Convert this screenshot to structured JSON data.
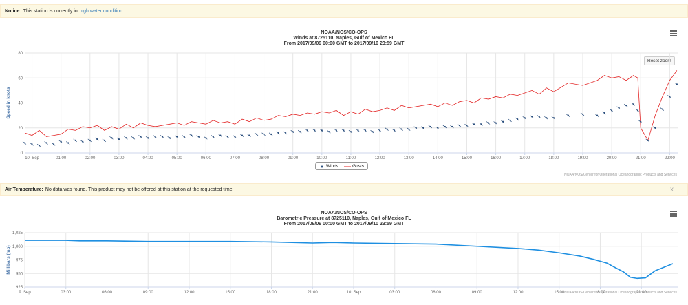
{
  "notice1": {
    "label": "Notice:",
    "text": "This station is currently in",
    "link": "high water condition",
    "end": "."
  },
  "winds_chart": {
    "line1": "NOAA/NOS/CO-OPS",
    "line2": "Winds at 8725110, Naples, Gulf of Mexico FL",
    "line3": "From 2017/09/09 00:00 GMT to 2017/09/10 23:59 GMT",
    "reset_zoom": "Reset zoom",
    "credits": "NOAA/NOS/Center for Operational Oceanographic Products and Services",
    "legend": {
      "winds": "Winds",
      "gusts": "Gusts"
    }
  },
  "notice2": {
    "label": "Air Temperature:",
    "text": "No data was found. This product may not be offered at this station at the requested time.",
    "close": "x"
  },
  "pressure_chart": {
    "line1": "NOAA/NOS/CO-OPS",
    "line2": "Barometric Pressure at 8725110, Naples, Gulf of Mexico FL",
    "line3": "From 2017/09/09 00:00 GMT to 2017/09/10 23:59 GMT",
    "credits": "NOAA/NOS/Center for Operational Oceanographic Products and Services"
  },
  "colors": {
    "gusts": "#e32424",
    "winds": "#2b4f7e",
    "pressure": "#1e8fe1"
  },
  "chart_data": [
    {
      "type": "line",
      "title": "Winds at 8725110, Naples, Gulf of Mexico FL",
      "ylabel": "Speed in knots",
      "ylim": [
        0,
        80
      ],
      "yticks": [
        0,
        20,
        40,
        60,
        80
      ],
      "xlim": [
        -0.25,
        22.3
      ],
      "xticks": [
        {
          "v": 0,
          "label": "10. Sep"
        },
        {
          "v": 1,
          "label": "01:00"
        },
        {
          "v": 2,
          "label": "02:00"
        },
        {
          "v": 3,
          "label": "03:00"
        },
        {
          "v": 4,
          "label": "04:00"
        },
        {
          "v": 5,
          "label": "05:00"
        },
        {
          "v": 6,
          "label": "06:00"
        },
        {
          "v": 7,
          "label": "07:00"
        },
        {
          "v": 8,
          "label": "08:00"
        },
        {
          "v": 9,
          "label": "09:00"
        },
        {
          "v": 10,
          "label": "10:00"
        },
        {
          "v": 11,
          "label": "11:00"
        },
        {
          "v": 12,
          "label": "12:00"
        },
        {
          "v": 13,
          "label": "13:00"
        },
        {
          "v": 14,
          "label": "14:00"
        },
        {
          "v": 15,
          "label": "15:00"
        },
        {
          "v": 16,
          "label": "16:00"
        },
        {
          "v": 17,
          "label": "17:00"
        },
        {
          "v": 18,
          "label": "18:00"
        },
        {
          "v": 19,
          "label": "19:00"
        },
        {
          "v": 20,
          "label": "20:00"
        },
        {
          "v": 21,
          "label": "21:00"
        },
        {
          "v": 22,
          "label": "22:00"
        }
      ],
      "series": [
        {
          "name": "Gusts",
          "x": [
            -0.25,
            0,
            0.25,
            0.5,
            0.75,
            1,
            1.25,
            1.5,
            1.75,
            2,
            2.25,
            2.5,
            2.75,
            3,
            3.25,
            3.5,
            3.75,
            4,
            4.25,
            4.5,
            4.75,
            5,
            5.25,
            5.5,
            5.75,
            6,
            6.25,
            6.5,
            6.75,
            7,
            7.25,
            7.5,
            7.75,
            8,
            8.25,
            8.5,
            8.75,
            9,
            9.25,
            9.5,
            9.75,
            10,
            10.25,
            10.5,
            10.75,
            11,
            11.25,
            11.5,
            11.75,
            12,
            12.25,
            12.5,
            12.75,
            13,
            13.25,
            13.5,
            13.75,
            14,
            14.25,
            14.5,
            14.75,
            15,
            15.25,
            15.5,
            15.75,
            16,
            16.25,
            16.5,
            16.75,
            17,
            17.25,
            17.5,
            17.75,
            18,
            18.5,
            19,
            19.5,
            19.75,
            20,
            20.25,
            20.5,
            20.75,
            20.9,
            21,
            21.25,
            21.5,
            21.75,
            22,
            22.25
          ],
          "values": [
            16,
            14,
            18,
            13,
            14,
            15,
            19,
            18,
            21,
            20,
            22,
            18,
            21,
            19,
            23,
            20,
            24,
            22,
            21,
            22,
            23,
            24,
            22,
            25,
            24,
            23,
            26,
            24,
            25,
            23,
            27,
            25,
            28,
            26,
            27,
            30,
            29,
            31,
            30,
            32,
            31,
            33,
            32,
            34,
            30,
            33,
            31,
            35,
            33,
            34,
            36,
            34,
            38,
            36,
            37,
            38,
            39,
            37,
            40,
            38,
            41,
            42,
            40,
            44,
            43,
            45,
            44,
            47,
            46,
            48,
            50,
            47,
            52,
            49,
            56,
            54,
            58,
            62,
            60,
            61,
            58,
            62,
            60,
            20,
            10,
            30,
            45,
            58,
            66
          ]
        },
        {
          "name": "Winds",
          "x": [
            -0.25,
            0,
            0.25,
            0.5,
            0.75,
            1,
            1.25,
            1.5,
            1.75,
            2,
            2.25,
            2.5,
            2.75,
            3,
            3.25,
            3.5,
            3.75,
            4,
            4.25,
            4.5,
            4.75,
            5,
            5.25,
            5.5,
            5.75,
            6,
            6.25,
            6.5,
            6.75,
            7,
            7.25,
            7.5,
            7.75,
            8,
            8.25,
            8.5,
            8.75,
            9,
            9.25,
            9.5,
            9.75,
            10,
            10.25,
            10.5,
            10.75,
            11,
            11.25,
            11.5,
            11.75,
            12,
            12.25,
            12.5,
            12.75,
            13,
            13.25,
            13.5,
            13.75,
            14,
            14.25,
            14.5,
            14.75,
            15,
            15.25,
            15.5,
            15.75,
            16,
            16.25,
            16.5,
            16.75,
            17,
            17.25,
            17.5,
            17.75,
            18,
            18.5,
            19,
            19.5,
            19.75,
            20,
            20.25,
            20.5,
            20.75,
            20.9,
            21,
            21.25,
            21.5,
            21.75,
            22,
            22.25
          ],
          "values": [
            8,
            7,
            6,
            8,
            7,
            9,
            8,
            10,
            9,
            10,
            11,
            10,
            12,
            11,
            12,
            12,
            13,
            12,
            13,
            13,
            12,
            13,
            13,
            14,
            13,
            12,
            13,
            14,
            13,
            13,
            14,
            14,
            15,
            15,
            15,
            16,
            16,
            17,
            17,
            18,
            18,
            18,
            17,
            18,
            18,
            17,
            18,
            18,
            17,
            18,
            19,
            18,
            19,
            19,
            20,
            20,
            21,
            20,
            21,
            21,
            22,
            22,
            23,
            23,
            24,
            24,
            25,
            26,
            27,
            28,
            29,
            29,
            28,
            28,
            30,
            31,
            30,
            32,
            34,
            36,
            38,
            39,
            34,
            25,
            10,
            20,
            35,
            45,
            55
          ]
        }
      ]
    },
    {
      "type": "line",
      "title": "Barometric Pressure at 8725110, Naples, Gulf of Mexico FL",
      "ylabel": "Millibars (mb)",
      "ylim": [
        925,
        1025
      ],
      "yticks": [
        925,
        950,
        975,
        1000,
        1025
      ],
      "ytick_labels": [
        "925",
        "950",
        "975",
        "1,000",
        "1,025"
      ],
      "xlim": [
        0,
        47.7
      ],
      "xticks": [
        {
          "v": 0,
          "label": "9. Sep"
        },
        {
          "v": 3,
          "label": "03:00"
        },
        {
          "v": 6,
          "label": "06:00"
        },
        {
          "v": 9,
          "label": "09:00"
        },
        {
          "v": 12,
          "label": "12:00"
        },
        {
          "v": 15,
          "label": "15:00"
        },
        {
          "v": 18,
          "label": "18:00"
        },
        {
          "v": 21,
          "label": "21:00"
        },
        {
          "v": 24,
          "label": "10. Sep"
        },
        {
          "v": 27,
          "label": "03:00"
        },
        {
          "v": 30,
          "label": "06:00"
        },
        {
          "v": 33,
          "label": "09:00"
        },
        {
          "v": 36,
          "label": "12:00"
        },
        {
          "v": 39,
          "label": "15:00"
        },
        {
          "v": 42,
          "label": "18:00"
        },
        {
          "v": 45,
          "label": "21:00"
        }
      ],
      "series": [
        {
          "name": "Barometric Pressure",
          "x": [
            0,
            3,
            4,
            6,
            9,
            12,
            15,
            18,
            21,
            22.5,
            24,
            27,
            30,
            33,
            36,
            37.5,
            39,
            40.5,
            41.5,
            42.5,
            43,
            43.7,
            44.2,
            44.7,
            45.3,
            46,
            47.3
          ],
          "values": [
            1011,
            1011,
            1010,
            1010,
            1009,
            1009,
            1009,
            1008,
            1006,
            1007,
            1006,
            1005,
            1004,
            1000,
            996,
            993,
            988,
            982,
            976,
            969,
            962,
            953,
            943,
            941,
            942,
            955,
            968
          ]
        }
      ]
    }
  ]
}
